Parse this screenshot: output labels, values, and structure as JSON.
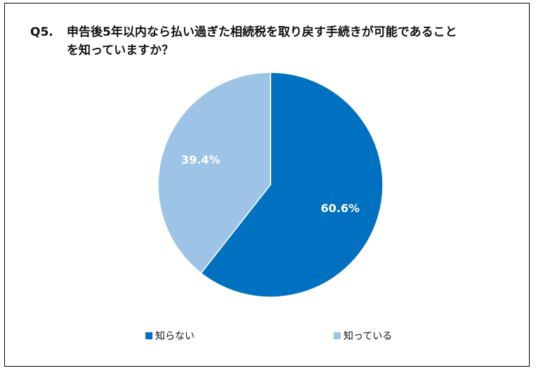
{
  "title": {
    "prefix": "Q5.",
    "line1": "申告後5年以内なら払い過ぎた相続税を取り戻す手続きが可能であること",
    "line2": "を知っていますか？"
  },
  "chart_data": {
    "type": "pie",
    "start_angle_deg": 0,
    "direction": "clockwise",
    "slices": [
      {
        "label": "知らない",
        "value": 60.6,
        "display": "60.6%",
        "color": "#0070C0"
      },
      {
        "label": "知っている",
        "value": 39.4,
        "display": "39.4%",
        "color": "#9DC3E6"
      }
    ],
    "legend_position": "bottom"
  }
}
